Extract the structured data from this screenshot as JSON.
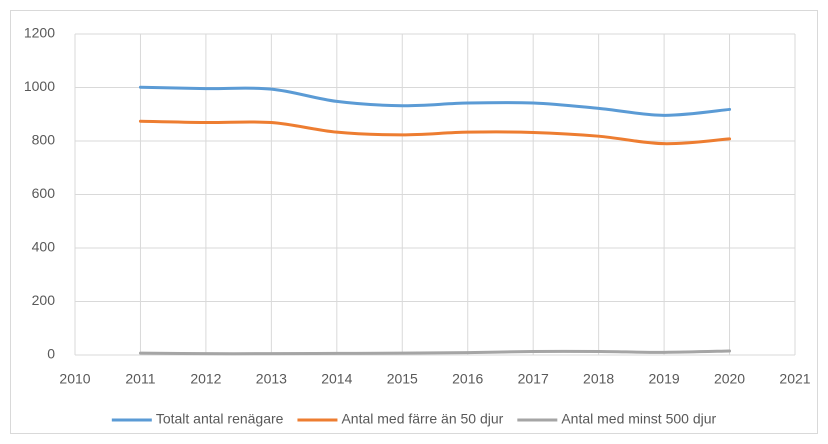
{
  "chart_data": {
    "type": "line",
    "x": [
      2011,
      2012,
      2013,
      2014,
      2015,
      2016,
      2017,
      2018,
      2019,
      2020
    ],
    "series": [
      {
        "name": "Totalt antal renägare",
        "color": "#5b9bd5",
        "values": [
          1001,
          996,
          994,
          948,
          932,
          942,
          942,
          922,
          896,
          918
        ]
      },
      {
        "name": "Antal med färre än 50 djur",
        "color": "#ed7d31",
        "values": [
          874,
          869,
          869,
          833,
          823,
          833,
          832,
          818,
          790,
          808
        ]
      },
      {
        "name": "Antal med minst 500 djur",
        "color": "#a5a5a5",
        "values": [
          7,
          5,
          5,
          6,
          7,
          9,
          13,
          13,
          10,
          15
        ]
      }
    ],
    "xlim": [
      2010,
      2021
    ],
    "xticks": [
      2010,
      2011,
      2012,
      2013,
      2014,
      2015,
      2016,
      2017,
      2018,
      2019,
      2020,
      2021
    ],
    "ylim": [
      0,
      1200
    ],
    "yticks": [
      0,
      200,
      400,
      600,
      800,
      1000,
      1200
    ],
    "grid": true,
    "smooth": true,
    "legend": "bottom"
  }
}
